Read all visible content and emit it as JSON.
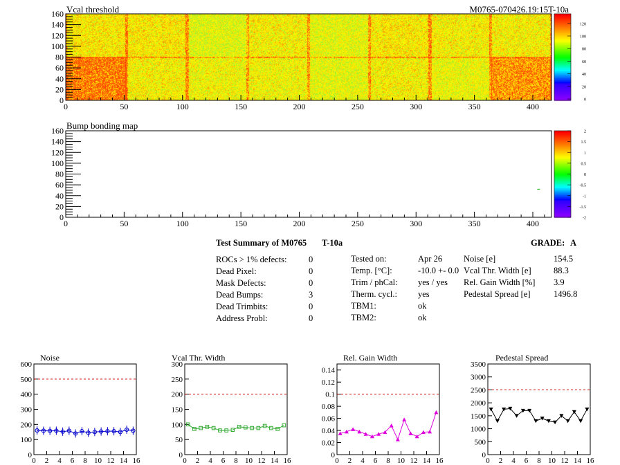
{
  "top_map": {
    "title": "Vcal threshold",
    "module_label": "M0765-070426.19:15T-10a",
    "y_ticks": [
      0,
      20,
      40,
      60,
      80,
      100,
      120,
      140,
      160
    ],
    "x_ticks": [
      0,
      50,
      100,
      150,
      200,
      250,
      300,
      350,
      400
    ],
    "palette_ticks": [
      0,
      20,
      40,
      60,
      80,
      100,
      120
    ],
    "xlim": [
      0,
      416
    ],
    "ylim": [
      0,
      160
    ]
  },
  "bump_map": {
    "title": "Bump bonding map",
    "y_ticks": [
      0,
      20,
      40,
      60,
      80,
      100,
      120,
      140,
      160
    ],
    "x_ticks": [
      0,
      50,
      100,
      150,
      200,
      250,
      300,
      350,
      400
    ],
    "palette_ticks": [
      "-2",
      "-1.5",
      "-1",
      "-0.5",
      "0",
      "0.5",
      "1",
      "1.5",
      "2"
    ],
    "xlim": [
      0,
      416
    ],
    "ylim": [
      0,
      160
    ]
  },
  "summary": {
    "title": "Test Summary of M0765",
    "temp_tag": "T-10a",
    "grade_label": "GRADE:",
    "grade": "A",
    "col1": [
      {
        "label": "ROCs > 1% defects:",
        "value": "0"
      },
      {
        "label": "Dead Pixel:",
        "value": "0"
      },
      {
        "label": "Mask Defects:",
        "value": "0"
      },
      {
        "label": "Dead Bumps:",
        "value": "3"
      },
      {
        "label": "Dead Trimbits:",
        "value": "0"
      },
      {
        "label": "Address Probl:",
        "value": "0"
      }
    ],
    "col2": [
      {
        "label": "Tested on:",
        "value": "Apr 26"
      },
      {
        "label": "Temp. [°C]:",
        "value": "-10.0 +- 0.0"
      },
      {
        "label": "Trim / phCal:",
        "value": "yes / yes"
      },
      {
        "label": "Therm. cycl.:",
        "value": "yes"
      },
      {
        "label": "TBM1:",
        "value": "ok"
      },
      {
        "label": "TBM2:",
        "value": "ok"
      }
    ],
    "col3": [
      {
        "label": "Noise [e]",
        "value": "154.5"
      },
      {
        "label": "Vcal Thr. Width [e]",
        "value": "88.3"
      },
      {
        "label": "Rel. Gain Width [%]",
        "value": "3.9"
      },
      {
        "label": "Pedestal Spread [e]",
        "value": "1496.8"
      }
    ]
  },
  "chart_data": [
    {
      "type": "line",
      "title": "Noise",
      "color": "#0000cc",
      "marker": "circle",
      "x": [
        0,
        1,
        2,
        3,
        4,
        5,
        6,
        7,
        8,
        9,
        10,
        11,
        12,
        13,
        14,
        15
      ],
      "values": [
        160,
        158,
        157,
        158,
        152,
        158,
        140,
        155,
        145,
        150,
        153,
        155,
        155,
        150,
        165,
        158
      ],
      "ylim": [
        0,
        600
      ],
      "yticks": [
        0,
        100,
        200,
        300,
        400,
        500,
        600
      ],
      "ytick_labels": [
        "0",
        "100",
        "200",
        "300",
        "400",
        "500",
        "600"
      ],
      "xlim": [
        0,
        16
      ],
      "xticks": [
        0,
        2,
        4,
        6,
        8,
        10,
        12,
        14,
        16
      ],
      "threshold": 500
    },
    {
      "type": "line",
      "title": "Vcal Thr. Width",
      "color": "#33aa33",
      "marker": "square",
      "x": [
        0,
        1,
        2,
        3,
        4,
        5,
        6,
        7,
        8,
        9,
        10,
        11,
        12,
        13,
        14,
        15
      ],
      "values": [
        100,
        85,
        88,
        92,
        88,
        80,
        80,
        82,
        92,
        90,
        88,
        88,
        95,
        88,
        85,
        97
      ],
      "ylim": [
        0,
        300
      ],
      "yticks": [
        0,
        50,
        100,
        150,
        200,
        250,
        300
      ],
      "ytick_labels": [
        "0",
        "50",
        "100",
        "150",
        "200",
        "250",
        "300"
      ],
      "xlim": [
        0,
        16
      ],
      "xticks": [
        0,
        2,
        4,
        6,
        8,
        10,
        12,
        14,
        16
      ],
      "threshold": 200
    },
    {
      "type": "line",
      "title": "Rel. Gain Width",
      "color": "#dd00dd",
      "marker": "triangle",
      "x": [
        0,
        1,
        2,
        3,
        4,
        5,
        6,
        7,
        8,
        9,
        10,
        11,
        12,
        13,
        14,
        15
      ],
      "values": [
        0.035,
        0.038,
        0.042,
        0.038,
        0.034,
        0.03,
        0.034,
        0.037,
        0.048,
        0.025,
        0.058,
        0.035,
        0.03,
        0.037,
        0.038,
        0.07
      ],
      "ylim": [
        0,
        0.15
      ],
      "yticks": [
        0,
        0.02,
        0.04,
        0.06,
        0.08,
        0.1,
        0.12,
        0.14
      ],
      "ytick_labels": [
        "0",
        "0.02",
        "0.04",
        "0.06",
        "0.08",
        "0.1",
        "0.12",
        "0.14"
      ],
      "xlim": [
        0,
        16
      ],
      "xticks": [
        0,
        2,
        4,
        6,
        8,
        10,
        12,
        14,
        16
      ],
      "threshold": 0.1
    },
    {
      "type": "line",
      "title": "Pedestal Spread",
      "color": "#000000",
      "marker": "triangle-down",
      "x": [
        0,
        1,
        2,
        3,
        4,
        5,
        6,
        7,
        8,
        9,
        10,
        11,
        12,
        13,
        14,
        15
      ],
      "values": [
        1750,
        1300,
        1750,
        1780,
        1500,
        1700,
        1700,
        1300,
        1400,
        1300,
        1250,
        1500,
        1300,
        1650,
        1300,
        1750
      ],
      "ylim": [
        0,
        3500
      ],
      "yticks": [
        0,
        500,
        1000,
        1500,
        2000,
        2500,
        3000,
        3500
      ],
      "ytick_labels": [
        "0",
        "500",
        "1000",
        "1500",
        "2000",
        "2500",
        "3000",
        "3500"
      ],
      "xlim": [
        0,
        16
      ],
      "xticks": [
        0,
        2,
        4,
        6,
        8,
        10,
        12,
        14,
        16
      ],
      "threshold": 2500
    }
  ]
}
